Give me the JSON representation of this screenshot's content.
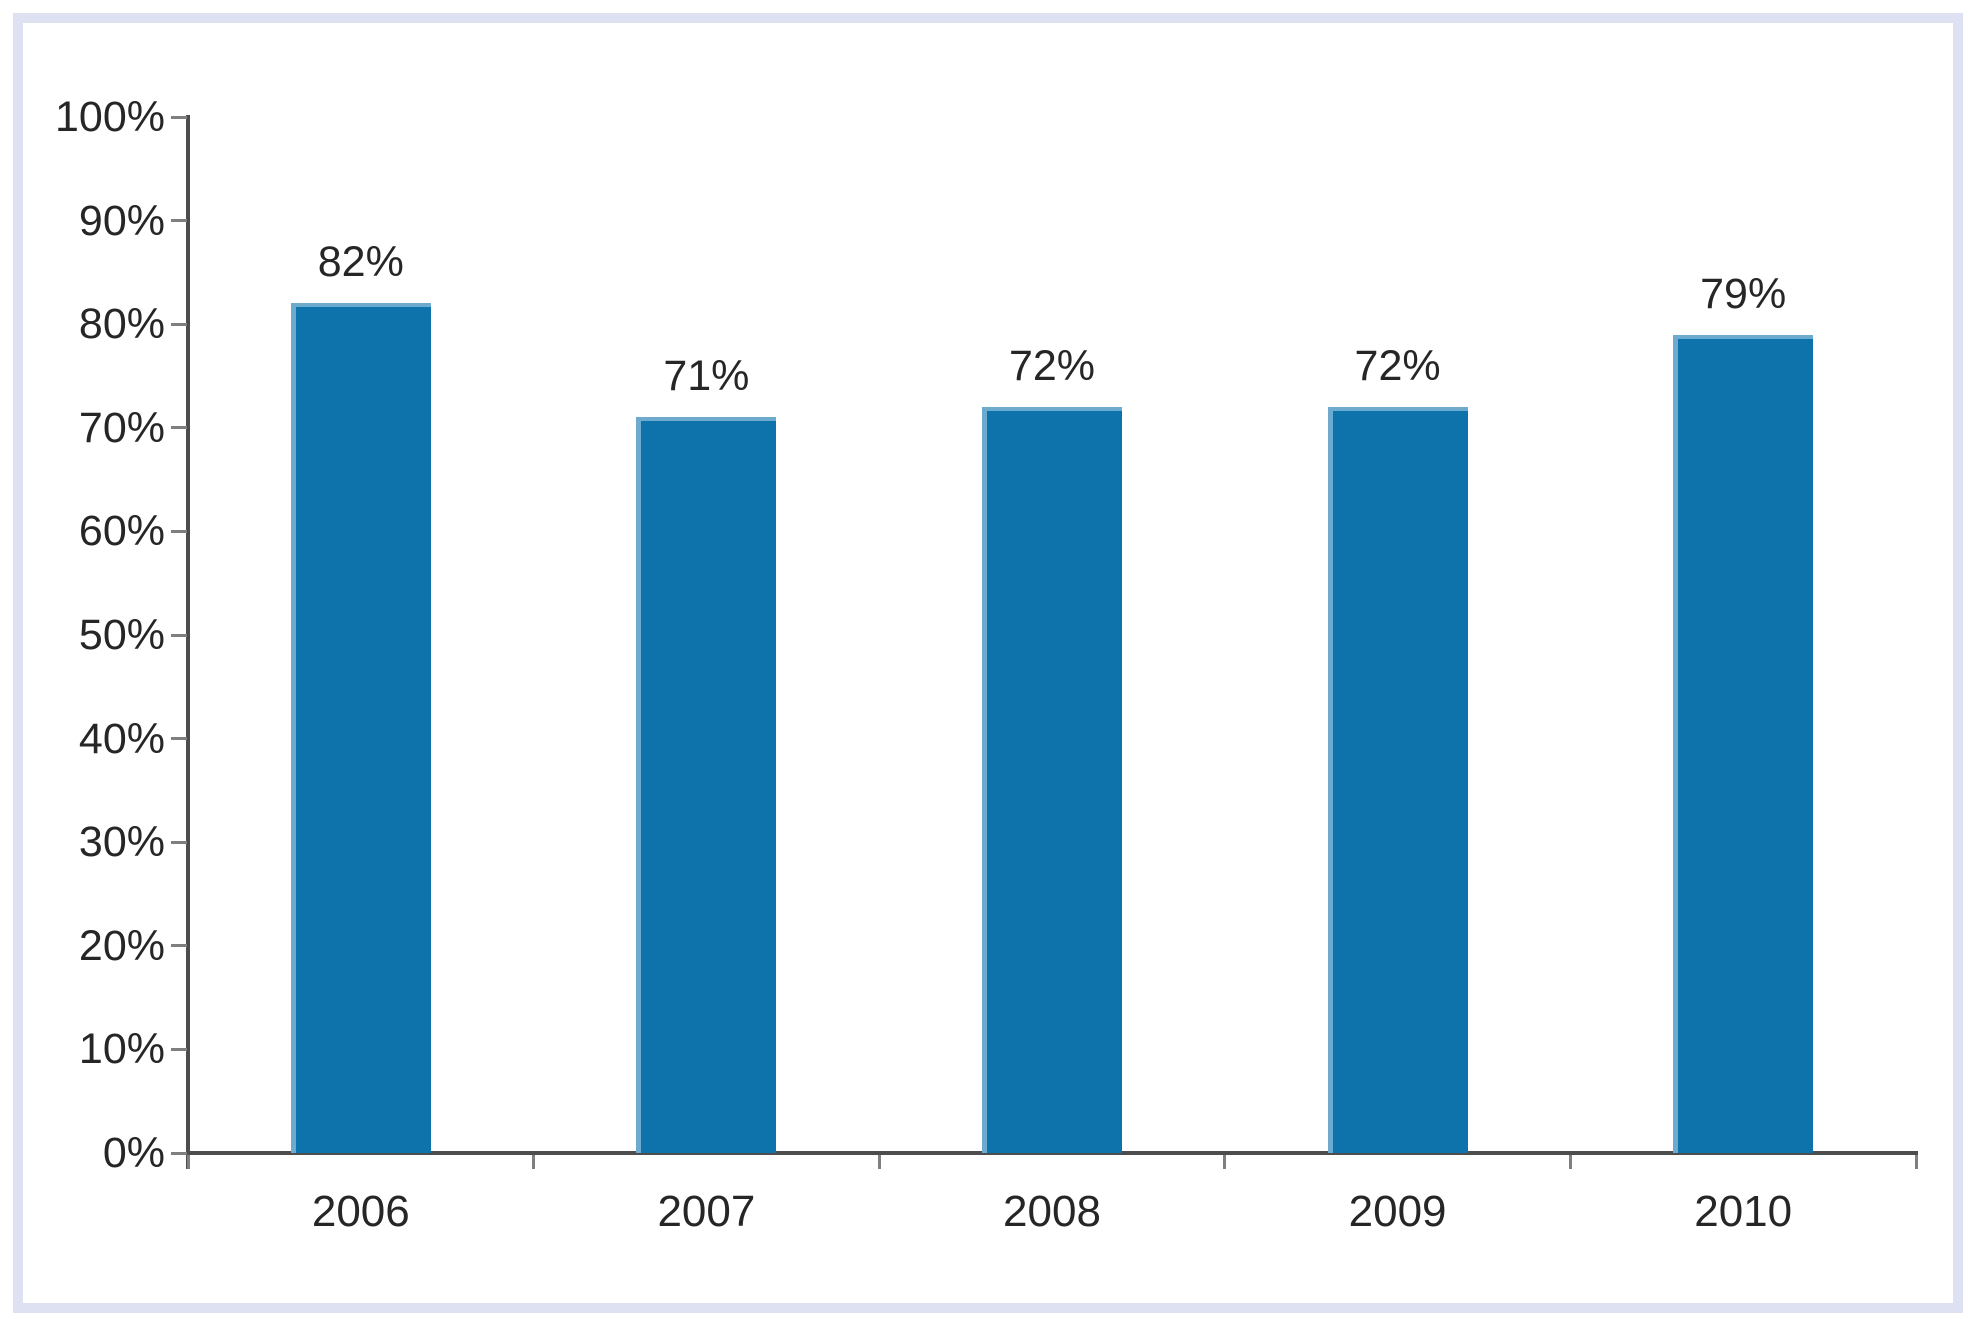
{
  "chart_data": {
    "type": "bar",
    "title": "",
    "xlabel": "",
    "ylabel": "",
    "categories": [
      "2006",
      "2007",
      "2008",
      "2009",
      "2010"
    ],
    "values": [
      82,
      71,
      72,
      72,
      79
    ],
    "data_labels": [
      "82%",
      "71%",
      "72%",
      "72%",
      "79%"
    ],
    "y_tick_labels": [
      "0%",
      "10%",
      "20%",
      "30%",
      "40%",
      "50%",
      "60%",
      "70%",
      "80%",
      "90%",
      "100%"
    ],
    "y_tick_values": [
      0,
      10,
      20,
      30,
      40,
      50,
      60,
      70,
      80,
      90,
      100
    ],
    "ylim": [
      0,
      100
    ],
    "grid": false,
    "legend": false,
    "bar_color": "#0e73ab",
    "axis_color": "#4d4d4d",
    "tick_color": "#7f7f7f",
    "text_color": "#262626",
    "frame_border_color": "#dee1f1",
    "background_color": "#ffffff"
  }
}
